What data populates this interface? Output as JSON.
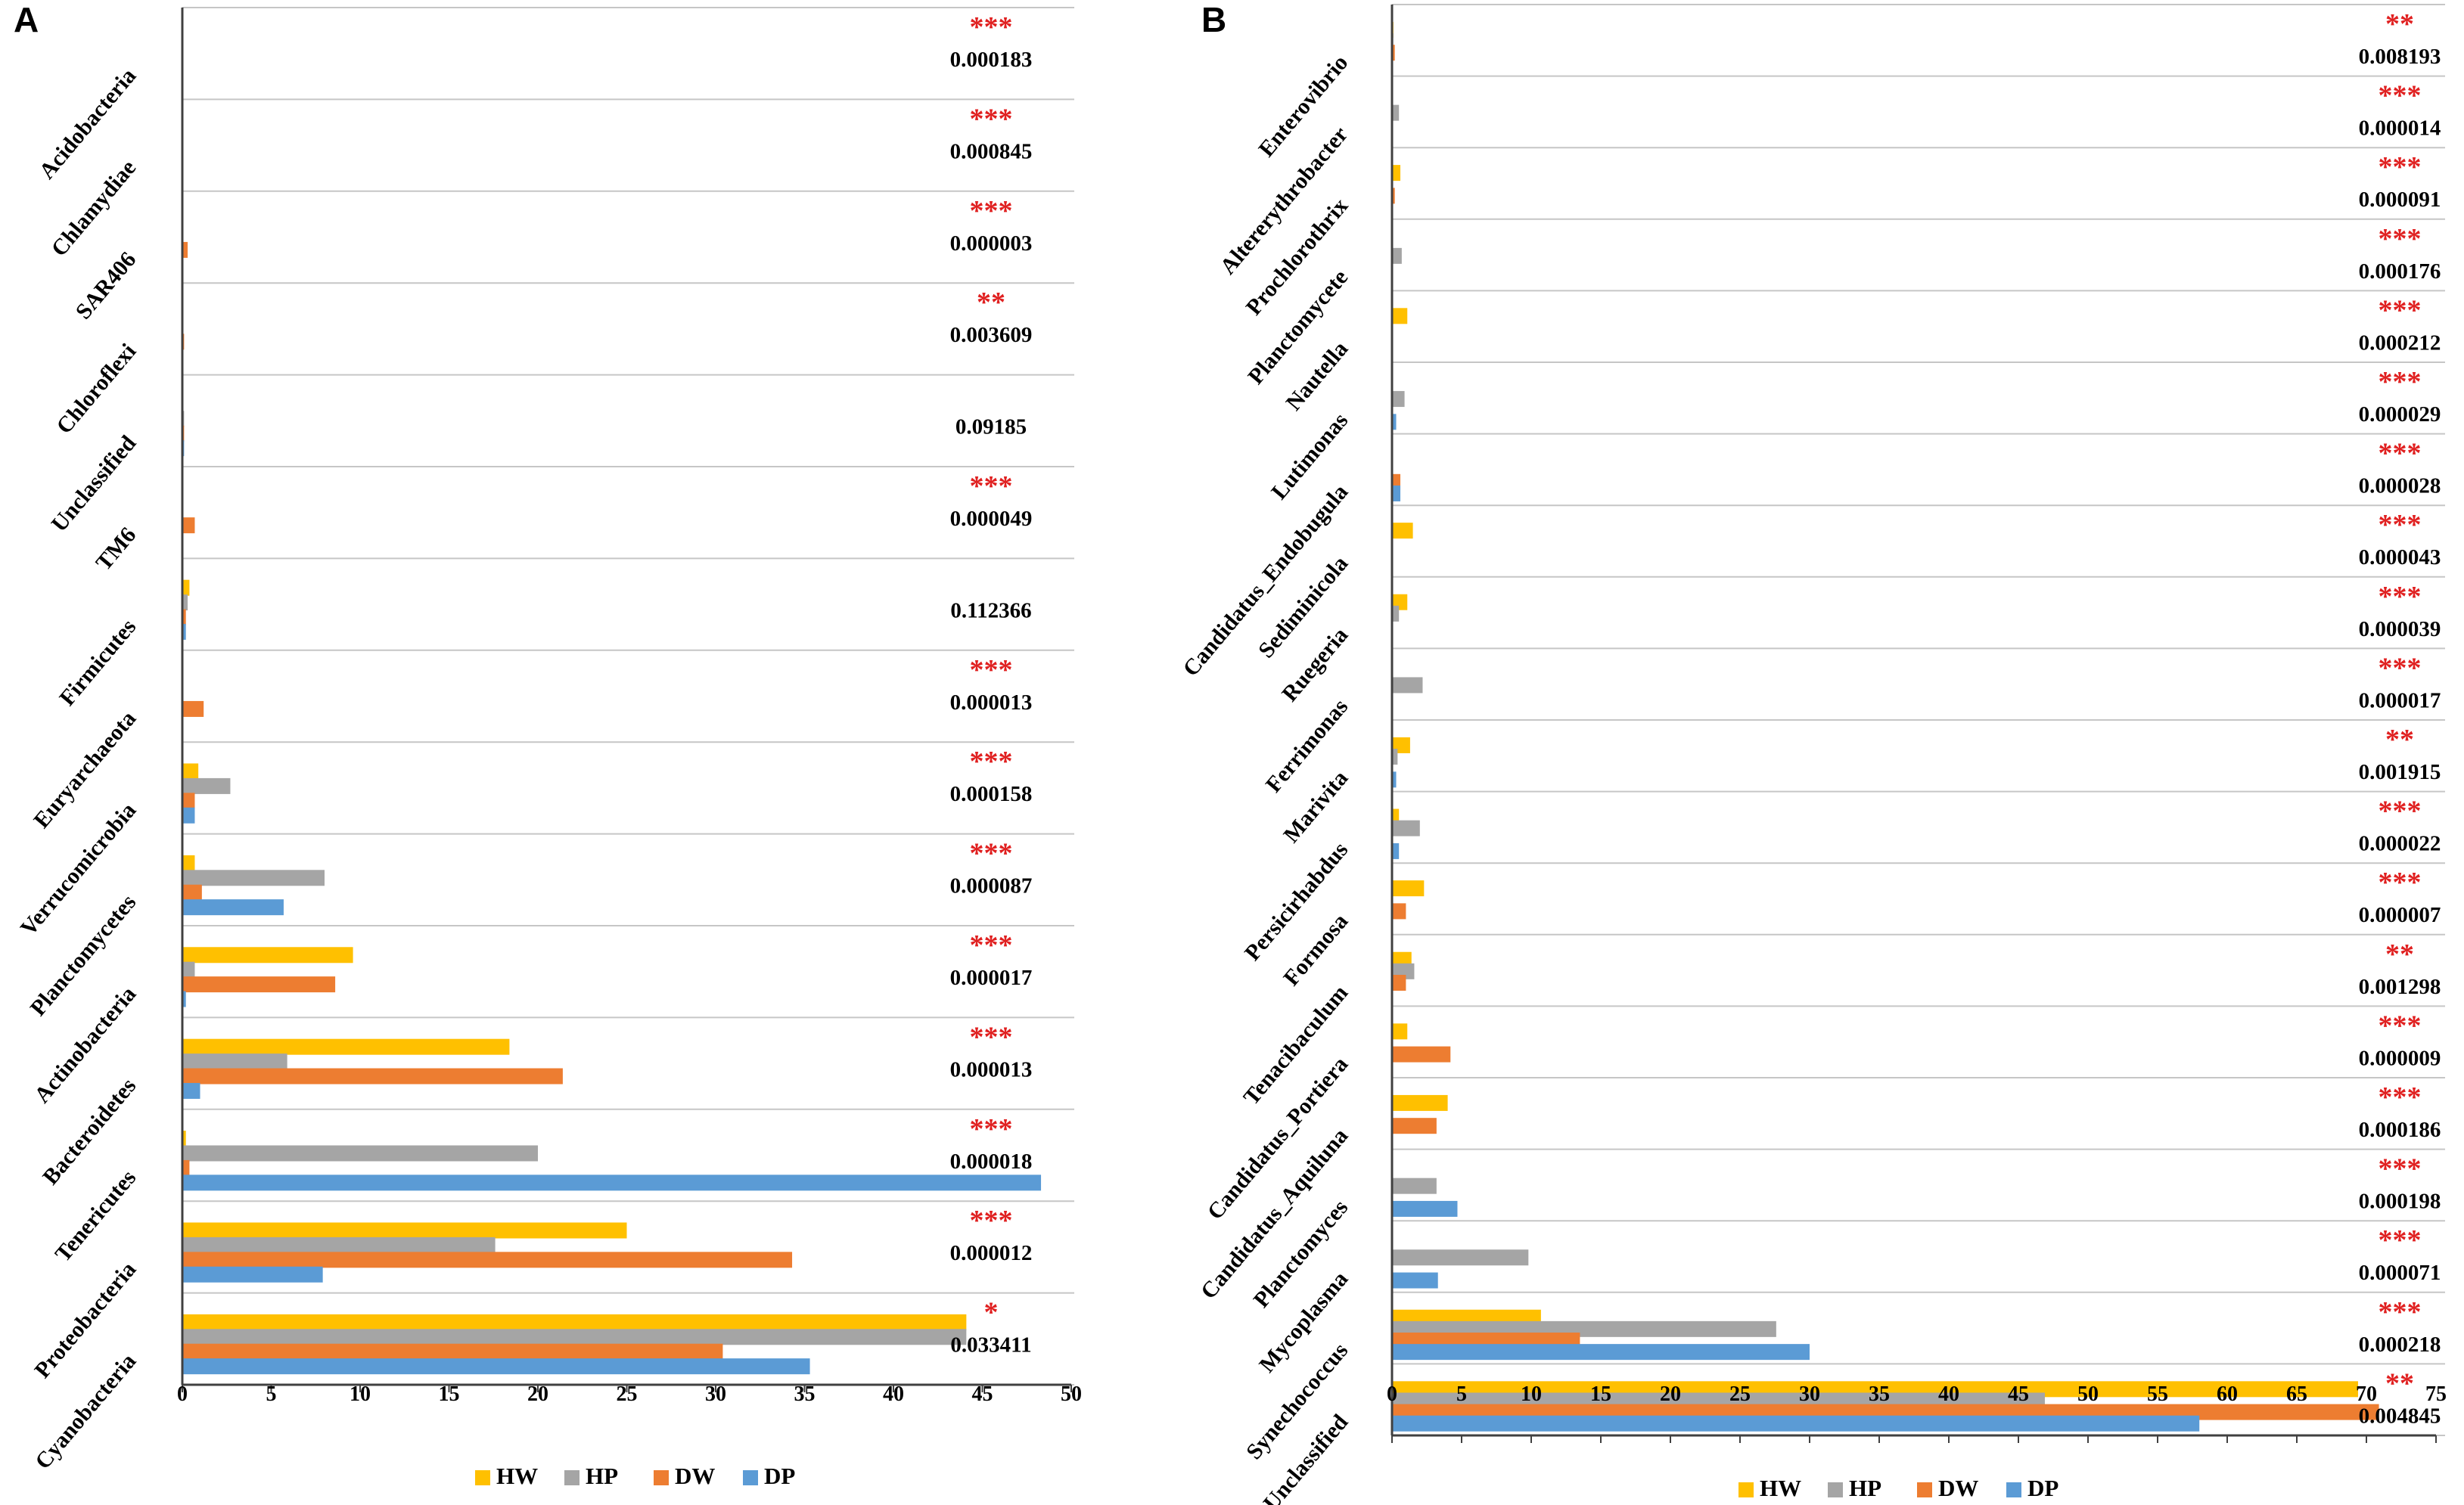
{
  "chart_data": [
    {
      "type": "bar",
      "orientation": "horizontal",
      "panel": "A",
      "xlim": [
        0,
        50
      ],
      "x_ticks": [
        "0",
        "5",
        "10",
        "15",
        "20",
        "25",
        "30",
        "35",
        "40",
        "45",
        "50"
      ],
      "legend_position": "bottom",
      "series_names": [
        "HW",
        "HP",
        "DW",
        "DP"
      ],
      "colors": {
        "HW": "#FFC000",
        "HP": "#A5A5A5",
        "DW": "#ED7D31",
        "DP": "#5B9BD5"
      },
      "categories": [
        {
          "name": "Acidobacteria",
          "values": [
            0,
            0,
            0,
            0
          ],
          "p": "0.000183",
          "sig": "***"
        },
        {
          "name": "Chlamydiae",
          "values": [
            0,
            0,
            0,
            0
          ],
          "p": "0.000845",
          "sig": "***"
        },
        {
          "name": "SAR406",
          "values": [
            0,
            0,
            0.3,
            0
          ],
          "p": "0.000003",
          "sig": "***"
        },
        {
          "name": "Chloroflexi",
          "values": [
            0,
            0,
            0.1,
            0
          ],
          "p": "0.003609",
          "sig": "**"
        },
        {
          "name": "Unclassified",
          "values": [
            0,
            0.1,
            0.1,
            0.1
          ],
          "p": "0.09185",
          "sig": ""
        },
        {
          "name": "TM6",
          "values": [
            0,
            0,
            0.7,
            0
          ],
          "p": "0.000049",
          "sig": "***"
        },
        {
          "name": "Firmicutes",
          "values": [
            0.4,
            0.3,
            0.2,
            0.2
          ],
          "p": "0.112366",
          "sig": ""
        },
        {
          "name": "Euryarchaeota",
          "values": [
            0,
            0,
            1.2,
            0
          ],
          "p": "0.000013",
          "sig": "***"
        },
        {
          "name": "Verrucomicrobia",
          "values": [
            0.9,
            2.7,
            0.7,
            0.7
          ],
          "p": "0.000158",
          "sig": "***"
        },
        {
          "name": "Planctomycetes",
          "values": [
            0.7,
            8,
            1.1,
            5.7
          ],
          "p": "0.000087",
          "sig": "***"
        },
        {
          "name": "Actinobacteria",
          "values": [
            9.6,
            0.7,
            8.6,
            0.2
          ],
          "p": "0.000017",
          "sig": "***"
        },
        {
          "name": "Bacteroidetes",
          "values": [
            18.4,
            5.9,
            21.4,
            1
          ],
          "p": "0.000013",
          "sig": "***"
        },
        {
          "name": "Tenericutes",
          "values": [
            0.2,
            20,
            0.4,
            48.3
          ],
          "p": "0.000018",
          "sig": "***"
        },
        {
          "name": "Proteobacteria",
          "values": [
            25,
            17.6,
            34.3,
            7.9
          ],
          "p": "0.000012",
          "sig": "***"
        },
        {
          "name": "Cyanobacteria",
          "values": [
            44.1,
            44.1,
            30.4,
            35.3
          ],
          "p": "0.033411",
          "sig": "*"
        }
      ]
    },
    {
      "type": "bar",
      "orientation": "horizontal",
      "panel": "B",
      "xlim": [
        0,
        75
      ],
      "x_ticks": [
        "0",
        "5",
        "10",
        "15",
        "20",
        "25",
        "30",
        "35",
        "40",
        "45",
        "50",
        "55",
        "60",
        "65",
        "70",
        "75"
      ],
      "legend_position": "bottom",
      "series_names": [
        "HW",
        "HP",
        "DW",
        "DP"
      ],
      "colors": {
        "HW": "#FFC000",
        "HP": "#A5A5A5",
        "DW": "#ED7D31",
        "DP": "#5B9BD5"
      },
      "categories": [
        {
          "name": "Enterovibrio",
          "values": [
            0.1,
            0.1,
            0.2,
            0
          ],
          "p": "0.008193",
          "sig": "**"
        },
        {
          "name": "Altererythrobacter",
          "values": [
            0,
            0.5,
            0,
            0
          ],
          "p": "0.000014",
          "sig": "***"
        },
        {
          "name": "Prochlorothrix",
          "values": [
            0.6,
            0,
            0.2,
            0
          ],
          "p": "0.000091",
          "sig": "***"
        },
        {
          "name": "Planctomycete",
          "values": [
            0,
            0.7,
            0,
            0
          ],
          "p": "0.000176",
          "sig": "***"
        },
        {
          "name": "Nautella",
          "values": [
            1.1,
            0,
            0,
            0
          ],
          "p": "0.000212",
          "sig": "***"
        },
        {
          "name": "Lutimonas",
          "values": [
            0,
            0.9,
            0,
            0.3
          ],
          "p": "0.000029",
          "sig": "***"
        },
        {
          "name": "Candidatus_Endobugula",
          "values": [
            0,
            0,
            0.6,
            0.6
          ],
          "p": "0.000028",
          "sig": "***"
        },
        {
          "name": "Sediminicola",
          "values": [
            1.5,
            0,
            0,
            0
          ],
          "p": "0.000043",
          "sig": "***"
        },
        {
          "name": "Ruegeria",
          "values": [
            1.1,
            0.5,
            0,
            0
          ],
          "p": "0.000039",
          "sig": "***"
        },
        {
          "name": "Ferrimonas",
          "values": [
            0,
            2.2,
            0,
            0
          ],
          "p": "0.000017",
          "sig": "***"
        },
        {
          "name": "Marivita",
          "values": [
            1.3,
            0.4,
            0,
            0.3
          ],
          "p": "0.001915",
          "sig": "**"
        },
        {
          "name": "Persicirhabdus",
          "values": [
            0.5,
            2,
            0,
            0.5
          ],
          "p": "0.000022",
          "sig": "***"
        },
        {
          "name": "Formosa",
          "values": [
            2.3,
            0,
            1,
            0
          ],
          "p": "0.000007",
          "sig": "***"
        },
        {
          "name": "Tenacibaculum",
          "values": [
            1.4,
            1.6,
            1,
            0
          ],
          "p": "0.001298",
          "sig": "**"
        },
        {
          "name": "Candidatus_Portiera",
          "values": [
            1.1,
            0,
            4.2,
            0
          ],
          "p": "0.000009",
          "sig": "***"
        },
        {
          "name": "Candidatus_Aquiluna",
          "values": [
            4,
            0,
            3.2,
            0
          ],
          "p": "0.000186",
          "sig": "***"
        },
        {
          "name": "Planctomyces",
          "values": [
            0,
            3.2,
            0,
            4.7
          ],
          "p": "0.000198",
          "sig": "***"
        },
        {
          "name": "Mycoplasma",
          "values": [
            0,
            9.8,
            0,
            3.3
          ],
          "p": "0.000071",
          "sig": "***"
        },
        {
          "name": "Synechococcus",
          "values": [
            10.7,
            27.6,
            13.5,
            30
          ],
          "p": "0.000218",
          "sig": "***"
        },
        {
          "name": "Unclassified",
          "values": [
            69.4,
            46.9,
            70.9,
            58
          ],
          "p": "0.004845",
          "sig": "**"
        }
      ]
    }
  ]
}
